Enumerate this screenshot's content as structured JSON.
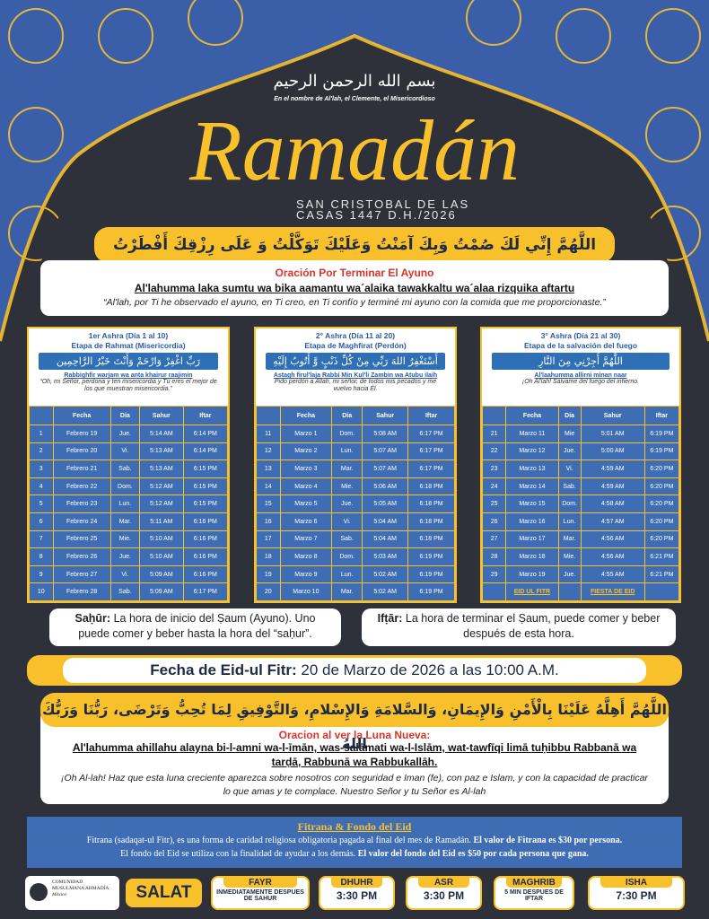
{
  "header": {
    "bismillah": "بسم الله الرحمن الرحيم",
    "subtitle": "En el nombre de Al'lah, el Clemente, el Misericordioso"
  },
  "title": "Ramadán",
  "location": "SAN CRISTOBAL DE LAS CASAS 1447 D.H./2026",
  "iftar_dua": {
    "arabic": "اللَّهُمَّ إِنِّي لَكَ صُمْتُ وَبِكَ آمَنْتُ وَعَلَيْكَ تَوَكَّلْتُ وَ عَلَى رِزْقِكَ أَفْطَرْتُ",
    "heading": "Oración Por Terminar El Ayuno",
    "transliteration": "Al'lahumma laka sumtu wa bika aamantu wa´alaika tawakkaltu wa´alaa rizquika aftartu",
    "translation": "“Al'lah, por Ti he observado el ayuno, en Ti creo, en Ti confío y terminé mi ayuno con la comida que me proporcionaste.”"
  },
  "table_headers": [
    "Fecha",
    "Día",
    "Sahur",
    "Iftar"
  ],
  "ashras": [
    {
      "title": "1er Ashra (Día 1 al 10)",
      "stage": "Etapa de Rahmat (Misericordia)",
      "arabic": "رَبِّ اغْفِرْ وَارْحَمْ وَأَنْتَ خَيْرُ الرَّاحِمِين",
      "transliteration": "Rabbighfir warjam wa anta khairur raajimin",
      "translation": "“Oh, mi Señor, perdona y ten misericordia y Tú eres el mejor de los que muestran misericordia.”",
      "rows": [
        [
          "1",
          "Febrero 19",
          "Jue.",
          "5:14 AM",
          "6:14 PM"
        ],
        [
          "2",
          "Febrero 20",
          "Vi.",
          "5:13 AM",
          "6:14 PM"
        ],
        [
          "3",
          "Febrero 21",
          "Sab.",
          "5:13 AM",
          "6:15 PM"
        ],
        [
          "4",
          "Febrero 22",
          "Dom.",
          "5:12 AM",
          "6:15 PM"
        ],
        [
          "5",
          "Febrero 23",
          "Lun.",
          "5:12 AM",
          "6:15 PM"
        ],
        [
          "6",
          "Febrero 24",
          "Mar.",
          "5:11 AM",
          "6:16 PM"
        ],
        [
          "7",
          "Febrero 25",
          "Mie.",
          "5:10 AM",
          "6:16 PM"
        ],
        [
          "8",
          "Febrero 26",
          "Jue.",
          "5:10 AM",
          "6:16 PM"
        ],
        [
          "9",
          "Febrero 27",
          "Vi.",
          "5:09 AM",
          "6:16 PM"
        ],
        [
          "10",
          "Febrero 28",
          "Sab.",
          "5:09 AM",
          "6:17 PM"
        ]
      ]
    },
    {
      "title": "2° Ashra (Día 11 al 20)",
      "stage": "Etapa de Maghfirat (Perdón)",
      "arabic": "أَسْتَغْفِرُ اللهَ رَبِّي مِنْ كُلِّ ذَنْبٍ وَّ أَتُوبُ إِلَيْهِ",
      "transliteration": "Astagh firul'laja Rabbi Min Kul'li Zambin wa Atubu ilaih",
      "translation": "Pido perdón a Allah, mi señor, de todos mis pecados y me vuelvo hacia Él.",
      "rows": [
        [
          "11",
          "Marzo 1",
          "Dom.",
          "5:08 AM",
          "6:17 PM"
        ],
        [
          "12",
          "Marzo 2",
          "Lun.",
          "5:07 AM",
          "6:17 PM"
        ],
        [
          "13",
          "Marzo 3",
          "Mar.",
          "5:07 AM",
          "6:17 PM"
        ],
        [
          "14",
          "Marzo 4",
          "Mie.",
          "5:06 AM",
          "6:18 PM"
        ],
        [
          "15",
          "Marzo 5",
          "Jue.",
          "5:05 AM",
          "6:18 PM"
        ],
        [
          "16",
          "Marzo 6",
          "Vi.",
          "5:04 AM",
          "6:18 PM"
        ],
        [
          "17",
          "Marzo 7",
          "Sab.",
          "5:04 AM",
          "6:18 PM"
        ],
        [
          "18",
          "Marzo 8",
          "Dom.",
          "5:03 AM",
          "6:19 PM"
        ],
        [
          "19",
          "Marzo 9",
          "Lun.",
          "5:02 AM",
          "6:19 PM"
        ],
        [
          "20",
          "Marzo 10",
          "Mar.",
          "5:02 AM",
          "6:19 PM"
        ]
      ]
    },
    {
      "title": "3° Ashra (Día 21 al 30)",
      "stage": "Etapa de la salvación del fuego",
      "arabic": "اللَّهُمَّ أَجِرْنِي مِنَ النَّارِ",
      "transliteration": "Al'laahumma allirni minan naar",
      "translation": "¡Oh Al'lah! Sálvame del fuego del infierno.",
      "rows": [
        [
          "21",
          "Marzo 11",
          "Mie",
          "5:01 AM",
          "6:19 PM"
        ],
        [
          "22",
          "Marzo 12",
          "Jue.",
          "5:00 AM",
          "6:19 PM"
        ],
        [
          "23",
          "Marzo 13",
          "Vi.",
          "4:59 AM",
          "6:20 PM"
        ],
        [
          "24",
          "Marzo 14",
          "Sab.",
          "4:59 AM",
          "6:20 PM"
        ],
        [
          "25",
          "Marzo 15",
          "Dom.",
          "4:58 AM",
          "6:20 PM"
        ],
        [
          "26",
          "Marzo 16",
          "Lun.",
          "4:57 AM",
          "6:20 PM"
        ],
        [
          "27",
          "Marzo 17",
          "Mar.",
          "4:56 AM",
          "6:20 PM"
        ],
        [
          "28",
          "Marzo 18",
          "Mie.",
          "4:56 AM",
          "6:21 PM"
        ],
        [
          "29",
          "Marzo 19",
          "Jue.",
          "4:55 AM",
          "6:21 PM"
        ]
      ],
      "final_row": {
        "fecha": "EID UL FITR",
        "sahur": "FIESTA DE EID"
      }
    }
  ],
  "definitions": [
    {
      "term": "Saḥūr:",
      "text": "La hora de inicio del Ṣaum (Ayuno). Uno puede comer y beber hasta la hora del “saḥur”."
    },
    {
      "term": "Ifṭār:",
      "text": "La hora de terminar el Ṣaum, puede comer y beber después de esta hora."
    }
  ],
  "eid": {
    "label": "Fecha de Eid-ul Fitr:",
    "date": "20 de Marzo de 2026 a las 10:00 A.M."
  },
  "moon_dua": {
    "arabic": "اللَّهُمَّ أَهِلَّهُ عَلَيْنَا بِالْأَمْنِ وَالإِيمَانِ، وَالسَّلامَةِ وَالإِسْلامِ، وَالتَّوْفِيقِ لِمَا تُحِبُّ وَتَرْضَى، رَبُّنَا وَرَبُّكَ اللهُ",
    "heading": "Oracion al ver la Luna Nueva:",
    "transliteration": "Al'lahumma ahillahu alayna bi-l-amni wa-l-īmān, was-salāmati wa-l-Islām, wat-tawfīqi limā tuḥibbu Rabbanā wa tarḍā, Rabbunā wa Rabbukallāh.",
    "translation": "¡Oh Al-lah! Haz que esta luna creciente aparezca sobre nosotros con seguridad e Iman (fe), con paz e Islam, y con la capacidad de practicar lo que amas y te complace. Nuestro Señor y tu Señor es Al-lah"
  },
  "fitrana": {
    "title": "Fitrana & Fondo del Eid",
    "line1": "Fitrana (sadaqat-ul Fitr), es una forma de caridad religiosa obligatoria pagada al final del mes de Ramadán.",
    "line1_bold": "El valor de Fitrana es $30 por persona.",
    "line2": "El fondo del Eid se utiliza con la finalidad de ayudar a los demás.",
    "line2_bold": "El valor del fondo del Eid es $50 por cada persona que gana."
  },
  "footer": {
    "org": [
      "COMUNIDAD",
      "MUSULMANA AHMADÍA",
      "México"
    ],
    "salat": "SALAT",
    "prayers": [
      {
        "name": "FAYR",
        "time": "INMEDIATAMENTE DESPUES DE SAHUR"
      },
      {
        "name": "DHUHR",
        "time": "3:30 PM"
      },
      {
        "name": "ASR",
        "time": "3:30 PM"
      },
      {
        "name": "MAGHRIB",
        "time": "5 MIN DESPUES DE IFTAR"
      },
      {
        "name": "ISHA",
        "time": "7:30 PM"
      }
    ]
  }
}
